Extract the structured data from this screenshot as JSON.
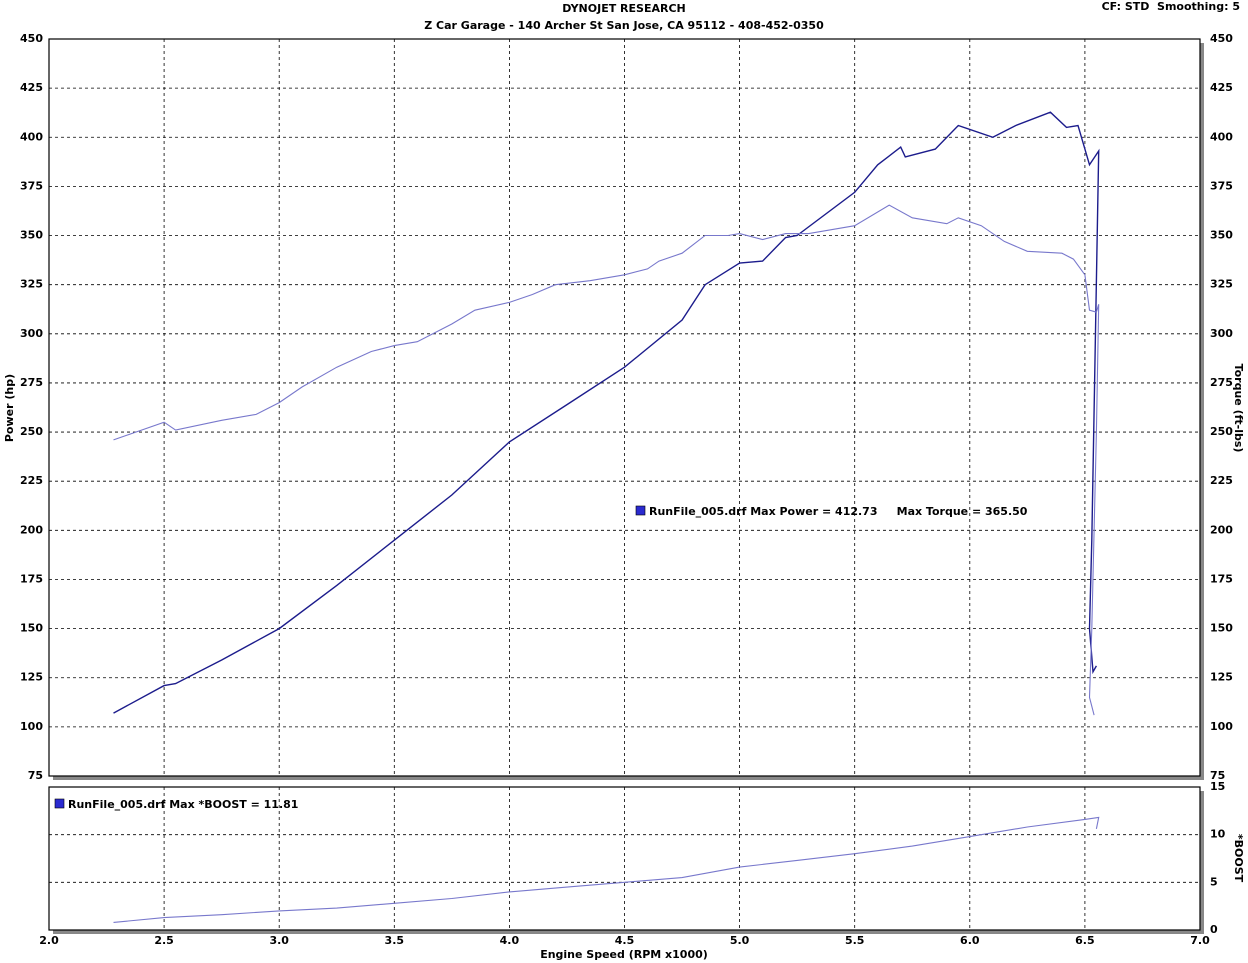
{
  "chart_data": [
    {
      "type": "line",
      "title": "DYNOJET RESEARCH",
      "subtitle": "Z Car Garage - 140 Archer St San Jose, CA 95112 - 408-452-0350",
      "corner_note": "CF: STD  Smoothing: 5",
      "annotation": "RunFile_005.drf Max Power = 412.73     Max Torque = 365.50",
      "ylabel": "Power (hp)",
      "y2label": "Torque (ft-lbs)",
      "xlim": [
        2,
        7
      ],
      "ylim": [
        75,
        450
      ],
      "yticks": [
        75,
        100,
        125,
        150,
        175,
        200,
        225,
        250,
        275,
        300,
        325,
        350,
        375,
        400,
        425,
        450
      ],
      "y2lim": [
        75,
        450
      ],
      "y2ticks": [
        75,
        100,
        125,
        150,
        175,
        200,
        225,
        250,
        275,
        300,
        325,
        350,
        375,
        400,
        425,
        450
      ],
      "grid": true,
      "series": [
        {
          "name": "Power",
          "color": "#1c1c8c",
          "axis": "y",
          "x": [
            2.28,
            2.5,
            2.55,
            2.75,
            3.0,
            3.25,
            3.5,
            3.75,
            4.0,
            4.25,
            4.5,
            4.75,
            4.85,
            5.0,
            5.1,
            5.2,
            5.25,
            5.5,
            5.6,
            5.7,
            5.72,
            5.85,
            5.95,
            6.1,
            6.2,
            6.35,
            6.42,
            6.47,
            6.52,
            6.56,
            6.53,
            6.52,
            6.535,
            6.55
          ],
          "values": [
            107,
            121,
            122,
            134,
            150,
            172,
            195,
            218,
            245,
            264,
            283,
            307,
            325,
            336,
            337,
            349,
            350,
            372,
            386,
            395,
            390,
            394,
            406,
            400,
            406,
            412.73,
            405,
            406,
            386,
            393,
            195,
            150,
            128,
            131
          ]
        },
        {
          "name": "Torque",
          "color": "#7878cc",
          "axis": "y2",
          "x": [
            2.28,
            2.5,
            2.55,
            2.75,
            2.9,
            3.0,
            3.1,
            3.25,
            3.4,
            3.5,
            3.6,
            3.75,
            3.85,
            4.0,
            4.1,
            4.2,
            4.35,
            4.5,
            4.6,
            4.65,
            4.75,
            4.85,
            4.95,
            5.0,
            5.1,
            5.2,
            5.3,
            5.5,
            5.65,
            5.75,
            5.9,
            5.95,
            6.05,
            6.15,
            6.25,
            6.4,
            6.45,
            6.5,
            6.52,
            6.55,
            6.56,
            6.55,
            6.53,
            6.52,
            6.54
          ],
          "values": [
            246,
            255,
            251,
            256,
            259,
            265,
            273,
            283,
            291,
            294,
            296,
            305,
            312,
            316,
            320,
            325,
            327,
            330,
            333,
            337,
            341,
            350,
            350,
            351,
            348,
            351,
            351,
            355,
            365.5,
            359,
            356,
            359,
            355,
            347,
            342,
            341,
            338,
            330,
            312,
            311,
            315,
            250,
            150,
            115,
            106
          ]
        }
      ]
    },
    {
      "type": "line",
      "annotation": "RunFile_005.drf Max *BOOST = 11.81",
      "xlabel": "Engine Speed (RPM x1000)",
      "y2label": "*BOOST",
      "xlim": [
        2,
        7
      ],
      "xticks": [
        {
          "value": 2,
          "label": "2.0"
        },
        2.5,
        {
          "value": 3,
          "label": "3.0"
        },
        3.5,
        {
          "value": 4,
          "label": "4.0"
        },
        4.5,
        {
          "value": 5,
          "label": "5.0"
        },
        5.5,
        {
          "value": 6,
          "label": "6.0"
        },
        6.5,
        {
          "value": 7,
          "label": "7.0"
        }
      ],
      "y2lim": [
        0,
        15
      ],
      "y2ticks": [
        0,
        5,
        10,
        15
      ],
      "grid": true,
      "series": [
        {
          "name": "*BOOST",
          "color": "#7878cc",
          "axis": "y2",
          "x": [
            2.28,
            2.5,
            2.75,
            3.0,
            3.25,
            3.5,
            3.75,
            4.0,
            4.25,
            4.5,
            4.75,
            5.0,
            5.25,
            5.5,
            5.75,
            6.0,
            6.25,
            6.5,
            6.56,
            6.55
          ],
          "values": [
            0.8,
            1.3,
            1.6,
            2.0,
            2.3,
            2.8,
            3.3,
            4.0,
            4.5,
            5.0,
            5.5,
            6.6,
            7.3,
            8.0,
            8.8,
            9.8,
            10.8,
            11.6,
            11.81,
            10.6
          ]
        }
      ]
    }
  ]
}
